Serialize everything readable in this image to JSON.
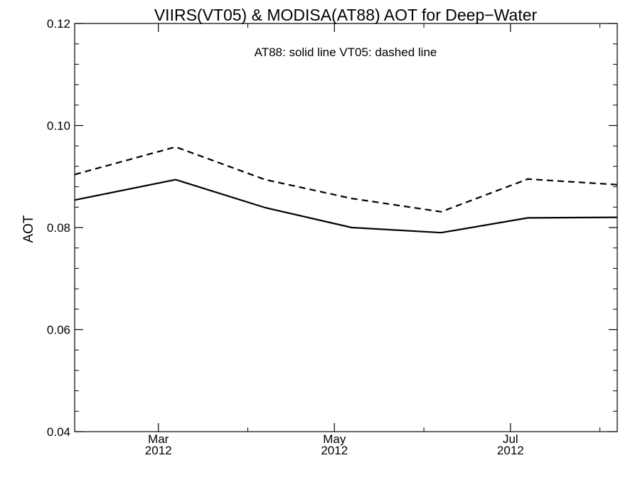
{
  "chart_data": {
    "type": "line",
    "title": "VIIRS(VT05) & MODISA(AT88)  AOT for Deep−Water",
    "annotation": "AT88: solid line   VT05: dashed line",
    "xlabel": "",
    "ylabel": "AOT",
    "ylim": [
      0.04,
      0.12
    ],
    "y_ticks": [
      "0.04",
      "0.06",
      "0.08",
      "0.10",
      "0.12"
    ],
    "x_range": [
      "2012-02-01",
      "2012-08-07"
    ],
    "x_ticks": [
      {
        "date": "2012-03-01",
        "month": "Mar",
        "year": "2012"
      },
      {
        "date": "2012-05-01",
        "month": "May",
        "year": "2012"
      },
      {
        "date": "2012-07-01",
        "month": "Jul",
        "year": "2012"
      }
    ],
    "x_minor_ticks": [
      "2012-02-01",
      "2012-04-01",
      "2012-06-01",
      "2012-08-01"
    ],
    "series": [
      {
        "style": "solid",
        "color": "#000000",
        "points": [
          {
            "x": "2012-02-01",
            "y": 0.0854
          },
          {
            "x": "2012-03-07",
            "y": 0.0894
          },
          {
            "x": "2012-04-07",
            "y": 0.0839
          },
          {
            "x": "2012-05-07",
            "y": 0.08
          },
          {
            "x": "2012-06-07",
            "y": 0.079
          },
          {
            "x": "2012-07-07",
            "y": 0.0819
          },
          {
            "x": "2012-08-07",
            "y": 0.082
          }
        ]
      },
      {
        "style": "dashed",
        "color": "#000000",
        "points": [
          {
            "x": "2012-02-01",
            "y": 0.0904
          },
          {
            "x": "2012-03-07",
            "y": 0.0958
          },
          {
            "x": "2012-04-07",
            "y": 0.0894
          },
          {
            "x": "2012-05-07",
            "y": 0.0857
          },
          {
            "x": "2012-06-07",
            "y": 0.0831
          },
          {
            "x": "2012-07-07",
            "y": 0.0895
          },
          {
            "x": "2012-08-07",
            "y": 0.0884
          }
        ]
      }
    ],
    "grid": false,
    "legend": "none"
  }
}
